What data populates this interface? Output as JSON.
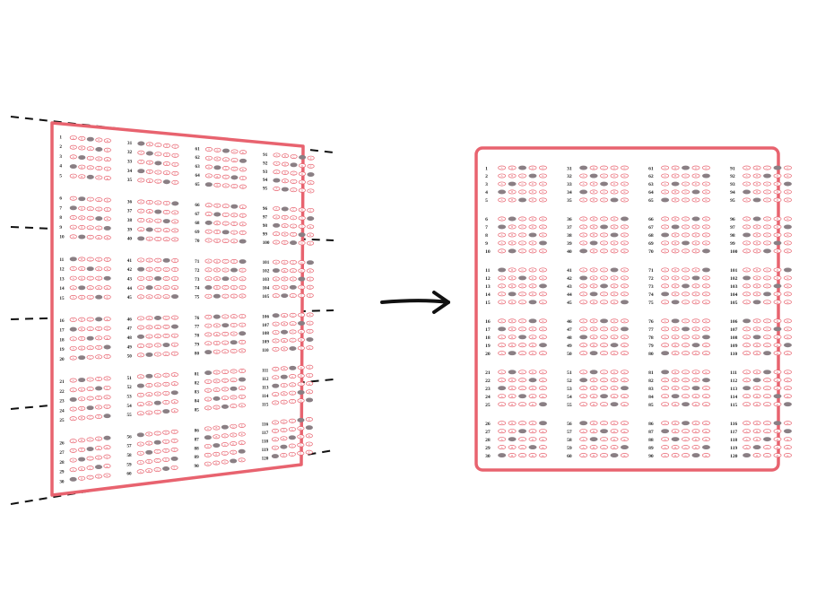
{
  "figure": {
    "description_free": true,
    "sheet_color": "#e8636f",
    "bubble_color": "#e8636f",
    "mark_color": "#8a7f84",
    "guide_color": "#111111",
    "arrow_color": "#111111",
    "choice_letters": [
      "A",
      "B",
      "C",
      "D",
      "E"
    ],
    "question_count": 120,
    "columns": 4,
    "questions_per_column": 30,
    "block_size": 5,
    "filled_answers": [
      2,
      3,
      1,
      0,
      2,
      1,
      0,
      3,
      4,
      1,
      0,
      2,
      4,
      1,
      3,
      3,
      0,
      2,
      4,
      1,
      1,
      3,
      0,
      2,
      4,
      4,
      2,
      1,
      3,
      0,
      0,
      1,
      2,
      0,
      3,
      4,
      2,
      3,
      1,
      0,
      3,
      0,
      2,
      1,
      4,
      2,
      4,
      0,
      3,
      1,
      1,
      0,
      4,
      2,
      3,
      0,
      2,
      1,
      4,
      3,
      2,
      4,
      1,
      3,
      0,
      3,
      1,
      0,
      2,
      4,
      4,
      3,
      2,
      0,
      1,
      1,
      2,
      4,
      3,
      0,
      0,
      4,
      3,
      1,
      2,
      2,
      0,
      1,
      4,
      3,
      3,
      2,
      4,
      0,
      1,
      1,
      4,
      0,
      3,
      2,
      4,
      0,
      3,
      2,
      1,
      0,
      3,
      1,
      4,
      2,
      2,
      1,
      0,
      3,
      4,
      3,
      4,
      2,
      1,
      0
    ]
  }
}
